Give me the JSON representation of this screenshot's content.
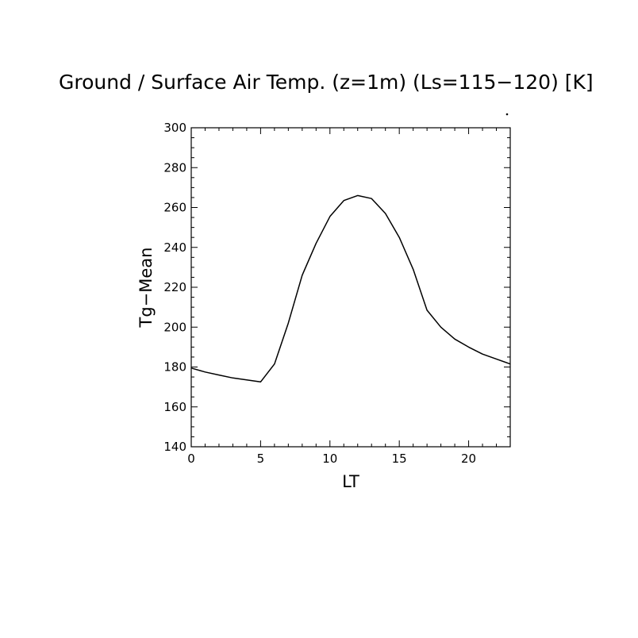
{
  "chart_data": {
    "type": "line",
    "title": "Ground / Surface Air Temp. (z=1m) (Ls=115−120) [K]",
    "xlabel": "LT",
    "ylabel": "Tg−Mean",
    "xlim": [
      0,
      23
    ],
    "ylim": [
      140,
      300
    ],
    "x_ticks": [
      0,
      5,
      10,
      15,
      20
    ],
    "x_tick_labels": [
      "0",
      "5",
      "10",
      "15",
      "20"
    ],
    "y_ticks": [
      140,
      160,
      180,
      200,
      220,
      240,
      260,
      280,
      300
    ],
    "y_tick_labels": [
      "140",
      "160",
      "180",
      "200",
      "220",
      "240",
      "260",
      "280",
      "300"
    ],
    "grid": false,
    "legend": "none",
    "series": [
      {
        "x": [
          0,
          1,
          2,
          3,
          4,
          5,
          6,
          7,
          8,
          9,
          10,
          11,
          12,
          13,
          14,
          15,
          16,
          17,
          18,
          19,
          20,
          21,
          22,
          23
        ],
        "values": [
          179.5,
          177.5,
          176,
          174.5,
          173.5,
          172.5,
          181.5,
          202,
          226,
          242,
          255.5,
          263.5,
          266,
          264.5,
          257,
          245,
          229,
          208.5,
          200,
          194,
          190,
          186.5,
          184,
          181.5
        ]
      }
    ],
    "colors": {
      "line": "#000000",
      "axes": "#000000",
      "background": "#ffffff"
    }
  }
}
